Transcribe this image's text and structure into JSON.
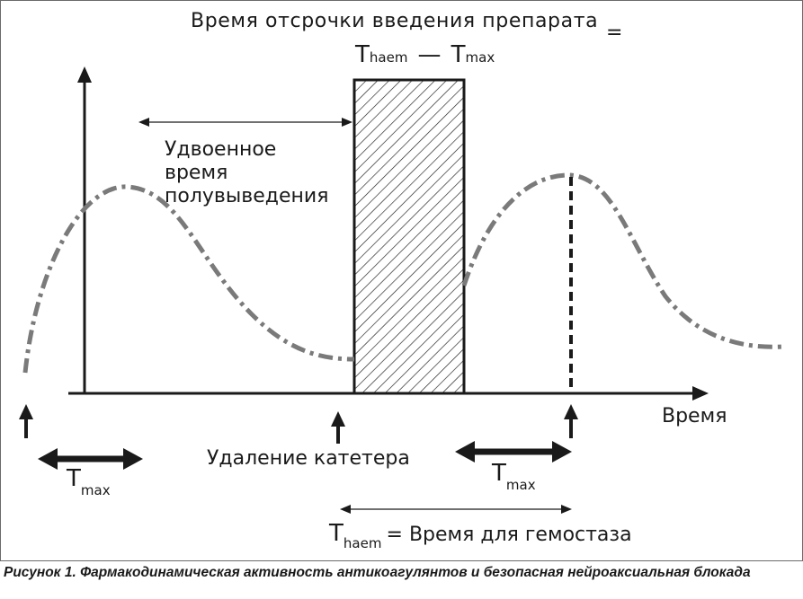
{
  "title": {
    "line": "Время отсрочки введения препарата",
    "equals": "="
  },
  "formula_top": {
    "t1": "T",
    "s1": "haem",
    "dash": "—",
    "t2": "T",
    "s2": "max"
  },
  "half_life_label": [
    "Удвоенное",
    "время",
    "полувыведения"
  ],
  "x_axis_label": "Время",
  "catheter_label": "Удаление катетера",
  "tmax_left": {
    "t": "T",
    "s": "max"
  },
  "tmax_right": {
    "t": "T",
    "s": "max"
  },
  "haem_def": {
    "t": "T",
    "s": "haem",
    "rest": "= Время для гемостаза"
  },
  "caption": "Рисунок 1. Фармакодинамическая активность антикоагулянтов и безопасная нейроаксиальная блокада",
  "colors": {
    "curve": "#7a7a7a",
    "ink": "#1a1a1a",
    "frame": "#6b6b6b"
  }
}
